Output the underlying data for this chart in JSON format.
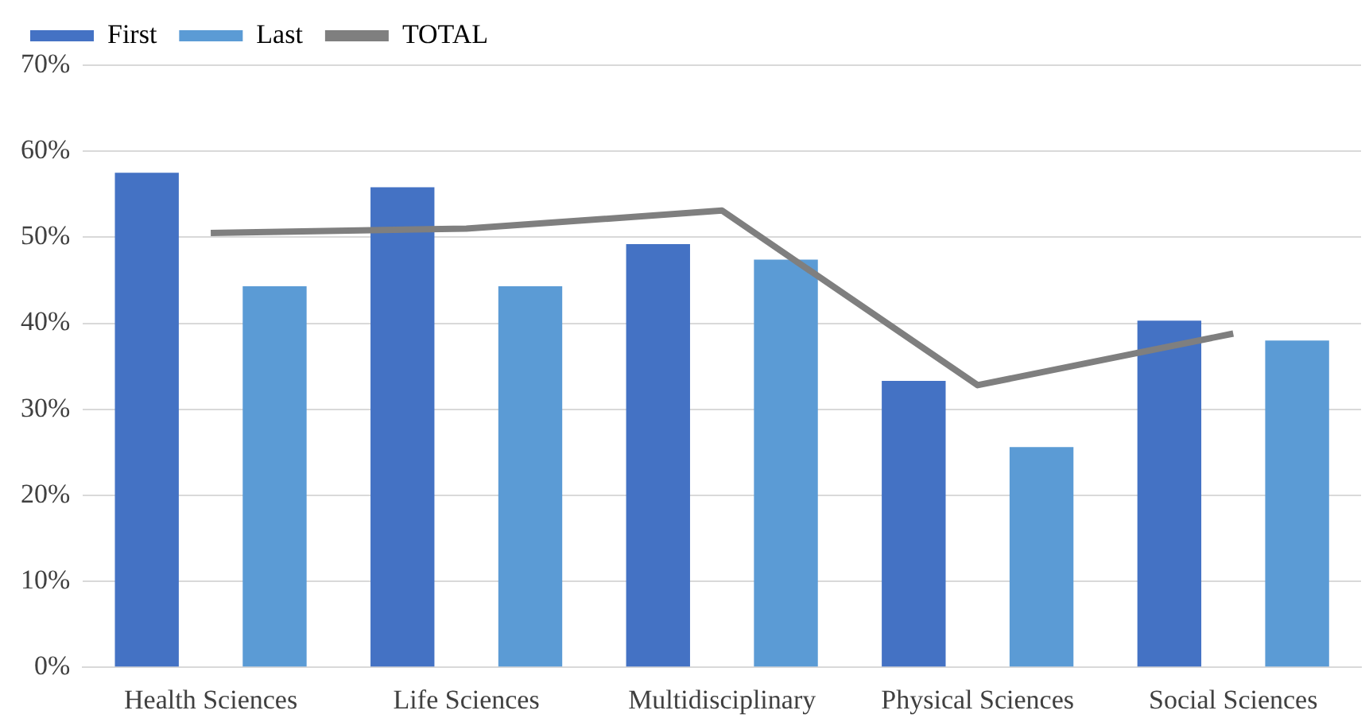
{
  "chart_data": {
    "type": "bar",
    "categories": [
      "Health Sciences",
      "Life Sciences",
      "Multidisciplinary",
      "Physical Sciences",
      "Social Sciences"
    ],
    "series": [
      {
        "name": "First",
        "color": "#4472c4",
        "values": [
          57.5,
          55.8,
          49.2,
          33.3,
          40.3
        ]
      },
      {
        "name": "Last",
        "color": "#5b9bd5",
        "values": [
          44.3,
          44.3,
          47.4,
          25.6,
          38.0
        ]
      },
      {
        "name": "TOTAL",
        "type": "line",
        "color": "#7f7f7f",
        "values": [
          50.5,
          51.0,
          53.1,
          32.8,
          38.8
        ]
      }
    ],
    "ylim": [
      0,
      70
    ],
    "yticks": [
      {
        "value": 0,
        "label": "0%"
      },
      {
        "value": 10,
        "label": "10%"
      },
      {
        "value": 20,
        "label": "20%"
      },
      {
        "value": 30,
        "label": "30%"
      },
      {
        "value": 40,
        "label": "40%"
      },
      {
        "value": 50,
        "label": "50%"
      },
      {
        "value": 60,
        "label": "60%"
      },
      {
        "value": 70,
        "label": "70%"
      }
    ],
    "grid": "y",
    "legend": "top left",
    "marker": "none"
  }
}
